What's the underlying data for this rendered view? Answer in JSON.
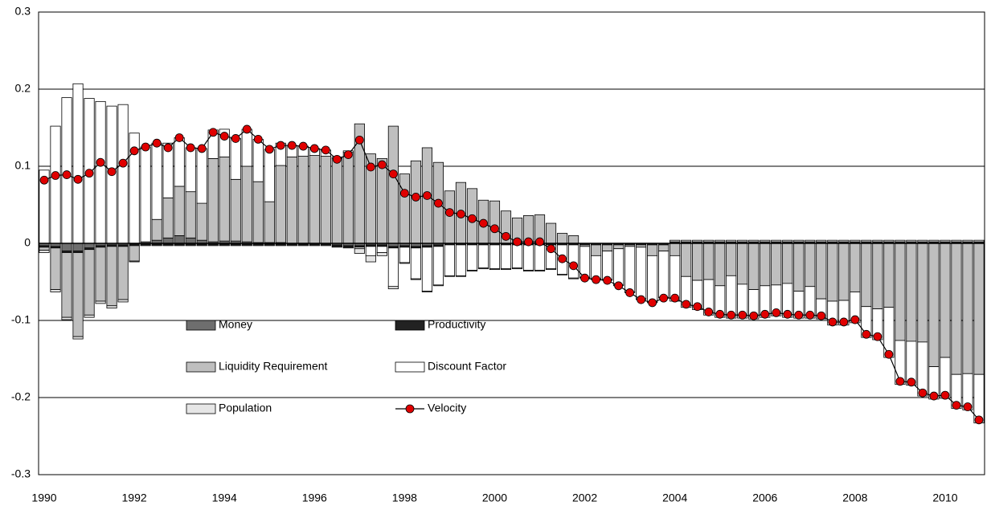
{
  "chart_data": {
    "type": "bar",
    "stacked": true,
    "categories": [
      "1990",
      null,
      null,
      null,
      null,
      null,
      null,
      null,
      "1992",
      null,
      null,
      null,
      null,
      null,
      null,
      null,
      "1994",
      null,
      null,
      null,
      null,
      null,
      null,
      null,
      "1996",
      null,
      null,
      null,
      null,
      null,
      null,
      null,
      "1998",
      null,
      null,
      null,
      null,
      null,
      null,
      null,
      "2000",
      null,
      null,
      null,
      null,
      null,
      null,
      null,
      "2002",
      null,
      null,
      null,
      null,
      null,
      null,
      null,
      "2004",
      null,
      null,
      null,
      null,
      null,
      null,
      null,
      "2006",
      null,
      null,
      null,
      null,
      null,
      null,
      null,
      "2008",
      null,
      null,
      null,
      null,
      null,
      null,
      null,
      "2010",
      null,
      null,
      null
    ],
    "ylim": [
      -0.3,
      0.3
    ],
    "yticks": [
      -0.3,
      -0.2,
      -0.1,
      0,
      0.1,
      0.2,
      0.3
    ],
    "grid": true,
    "series": [
      {
        "name": "Money",
        "color": "#6e6e6e",
        "values": [
          -0.003,
          -0.004,
          -0.01,
          -0.01,
          -0.006,
          -0.003,
          -0.002,
          -0.002,
          -0.001,
          0.002,
          0.004,
          0.007,
          0.01,
          0.007,
          0.004,
          0.002,
          0.003,
          0.003,
          0.002,
          0.001,
          0.001,
          0.001,
          0,
          0,
          0,
          0,
          -0.002,
          -0.003,
          -0.003,
          -0.002,
          -0.002,
          -0.004,
          -0.003,
          -0.004,
          -0.003,
          -0.002,
          0,
          0,
          0,
          0,
          0,
          0,
          0,
          0,
          0,
          0,
          0,
          0,
          0,
          0,
          0,
          0,
          0,
          0,
          0,
          0,
          0,
          0,
          0,
          0,
          0,
          0,
          0,
          0,
          0,
          0,
          0,
          0,
          0,
          0,
          0,
          0,
          0,
          0,
          0,
          0,
          0,
          0,
          0,
          0,
          0,
          0,
          0,
          0
        ]
      },
      {
        "name": "Productivity",
        "color": "#222222",
        "values": [
          -0.002,
          -0.002,
          -0.002,
          -0.002,
          -0.002,
          -0.002,
          -0.002,
          -0.002,
          -0.002,
          -0.002,
          -0.002,
          -0.002,
          -0.002,
          -0.002,
          -0.002,
          -0.002,
          -0.002,
          -0.002,
          -0.002,
          -0.002,
          -0.002,
          -0.002,
          -0.002,
          -0.002,
          -0.002,
          -0.002,
          -0.002,
          -0.002,
          -0.002,
          -0.002,
          -0.002,
          -0.002,
          -0.002,
          -0.002,
          -0.002,
          -0.002,
          -0.002,
          -0.002,
          -0.002,
          -0.002,
          -0.002,
          -0.002,
          -0.002,
          -0.002,
          -0.002,
          -0.002,
          -0.002,
          -0.002,
          -0.002,
          -0.002,
          -0.002,
          -0.002,
          -0.002,
          -0.002,
          -0.002,
          -0.002,
          0.002,
          0.002,
          0.002,
          0.002,
          0.002,
          0.002,
          0.002,
          0.002,
          0.002,
          0.002,
          0.002,
          0.002,
          0.002,
          0.002,
          0.002,
          0.002,
          0.002,
          0.002,
          0.002,
          0.002,
          0.002,
          0.002,
          0.002,
          0.002,
          0.002,
          0.002,
          0.002,
          0.002
        ]
      },
      {
        "name": "Liquidity Requirement",
        "color": "#bfbfbf",
        "values": [
          -0.004,
          -0.054,
          -0.084,
          -0.109,
          -0.085,
          -0.07,
          -0.077,
          -0.069,
          -0.02,
          0,
          0.027,
          0.052,
          0.064,
          0.06,
          0.048,
          0.108,
          0.109,
          0.08,
          0.098,
          0.079,
          0.053,
          0.1,
          0.112,
          0.113,
          0.114,
          0.113,
          0.11,
          0.118,
          0.155,
          0.116,
          0.11,
          0.152,
          0.09,
          0.107,
          0.124,
          0.105,
          0.068,
          0.079,
          0.071,
          0.056,
          0.055,
          0.042,
          0.033,
          0.036,
          0.037,
          0.026,
          0.013,
          0.01,
          -0.002,
          -0.014,
          -0.008,
          -0.005,
          -0.002,
          -0.003,
          -0.014,
          -0.008,
          -0.016,
          -0.043,
          -0.048,
          -0.047,
          -0.055,
          -0.042,
          -0.053,
          -0.06,
          -0.055,
          -0.054,
          -0.052,
          -0.062,
          -0.056,
          -0.072,
          -0.075,
          -0.074,
          -0.063,
          -0.082,
          -0.085,
          -0.083,
          -0.126,
          -0.127,
          -0.128,
          -0.16,
          -0.148,
          -0.17,
          -0.169,
          -0.17
        ]
      },
      {
        "name": "Discount Factor",
        "color": "#ffffff",
        "values": [
          0.095,
          0.152,
          0.189,
          0.207,
          0.188,
          0.184,
          0.178,
          0.18,
          0.143,
          0.123,
          0.099,
          0.071,
          0.063,
          0.057,
          0.071,
          0.037,
          0.036,
          0.053,
          0.048,
          0.055,
          0.068,
          0.029,
          0.015,
          0.013,
          0.009,
          0.008,
          0.002,
          0.002,
          -0.002,
          -0.012,
          -0.008,
          -0.05,
          -0.02,
          -0.04,
          -0.057,
          -0.05,
          -0.04,
          -0.04,
          -0.033,
          -0.03,
          -0.031,
          -0.031,
          -0.03,
          -0.033,
          -0.033,
          -0.031,
          -0.038,
          -0.043,
          -0.04,
          -0.03,
          -0.037,
          -0.047,
          -0.059,
          -0.067,
          -0.06,
          -0.06,
          -0.059,
          -0.04,
          -0.038,
          -0.046,
          -0.041,
          -0.055,
          -0.044,
          -0.038,
          -0.041,
          -0.04,
          -0.044,
          -0.035,
          -0.041,
          -0.026,
          -0.031,
          -0.032,
          -0.04,
          -0.04,
          -0.04,
          -0.065,
          -0.057,
          -0.057,
          -0.07,
          -0.042,
          -0.053,
          -0.044,
          -0.047,
          -0.063
        ]
      },
      {
        "name": "Population",
        "color": "#e6e6e6",
        "values": [
          -0.003,
          -0.003,
          -0.003,
          -0.003,
          -0.003,
          -0.003,
          -0.003,
          -0.003,
          -0.001,
          -0.001,
          -0.001,
          -0.001,
          -0.001,
          -0.001,
          -0.001,
          -0.001,
          -0.001,
          -0.001,
          -0.001,
          -0.001,
          -0.001,
          -0.001,
          -0.001,
          -0.001,
          -0.001,
          -0.001,
          -0.001,
          -0.001,
          -0.006,
          -0.008,
          -0.004,
          -0.003,
          -0.001,
          -0.001,
          -0.001,
          -0.001,
          -0.001,
          -0.001,
          -0.001,
          -0.001,
          -0.001,
          -0.001,
          -0.001,
          -0.001,
          -0.001,
          -0.001,
          -0.001,
          -0.001,
          -0.001,
          -0.001,
          -0.001,
          -0.001,
          -0.001,
          -0.001,
          -0.001,
          -0.001,
          0.002,
          0.002,
          0.002,
          0.002,
          0.002,
          0.002,
          0.002,
          0.002,
          0.002,
          0.002,
          0.002,
          0.002,
          0.002,
          0.002,
          0.002,
          0.002,
          0.002,
          0.002,
          0.002,
          0.002,
          0.002,
          0.002,
          0.002,
          0.002,
          0.002,
          0.002,
          0.002,
          0.002
        ]
      },
      {
        "name": "Velocity",
        "type": "line",
        "color": "#e00000",
        "values": [
          0.082,
          0.088,
          0.089,
          0.083,
          0.091,
          0.105,
          0.093,
          0.104,
          0.12,
          0.125,
          0.13,
          0.124,
          0.137,
          0.124,
          0.123,
          0.144,
          0.139,
          0.136,
          0.148,
          0.135,
          0.122,
          0.127,
          0.127,
          0.126,
          0.123,
          0.121,
          0.109,
          0.115,
          0.134,
          0.099,
          0.102,
          0.09,
          0.065,
          0.06,
          0.062,
          0.052,
          0.04,
          0.038,
          0.032,
          0.026,
          0.019,
          0.009,
          0.002,
          0.002,
          0.002,
          -0.007,
          -0.02,
          -0.029,
          -0.045,
          -0.047,
          -0.048,
          -0.055,
          -0.064,
          -0.073,
          -0.077,
          -0.071,
          -0.071,
          -0.079,
          -0.082,
          -0.089,
          -0.092,
          -0.093,
          -0.093,
          -0.094,
          -0.092,
          -0.09,
          -0.092,
          -0.093,
          -0.093,
          -0.094,
          -0.102,
          -0.102,
          -0.099,
          -0.118,
          -0.121,
          -0.144,
          -0.179,
          -0.18,
          -0.194,
          -0.198,
          -0.197,
          -0.21,
          -0.212,
          -0.229
        ]
      }
    ]
  }
}
